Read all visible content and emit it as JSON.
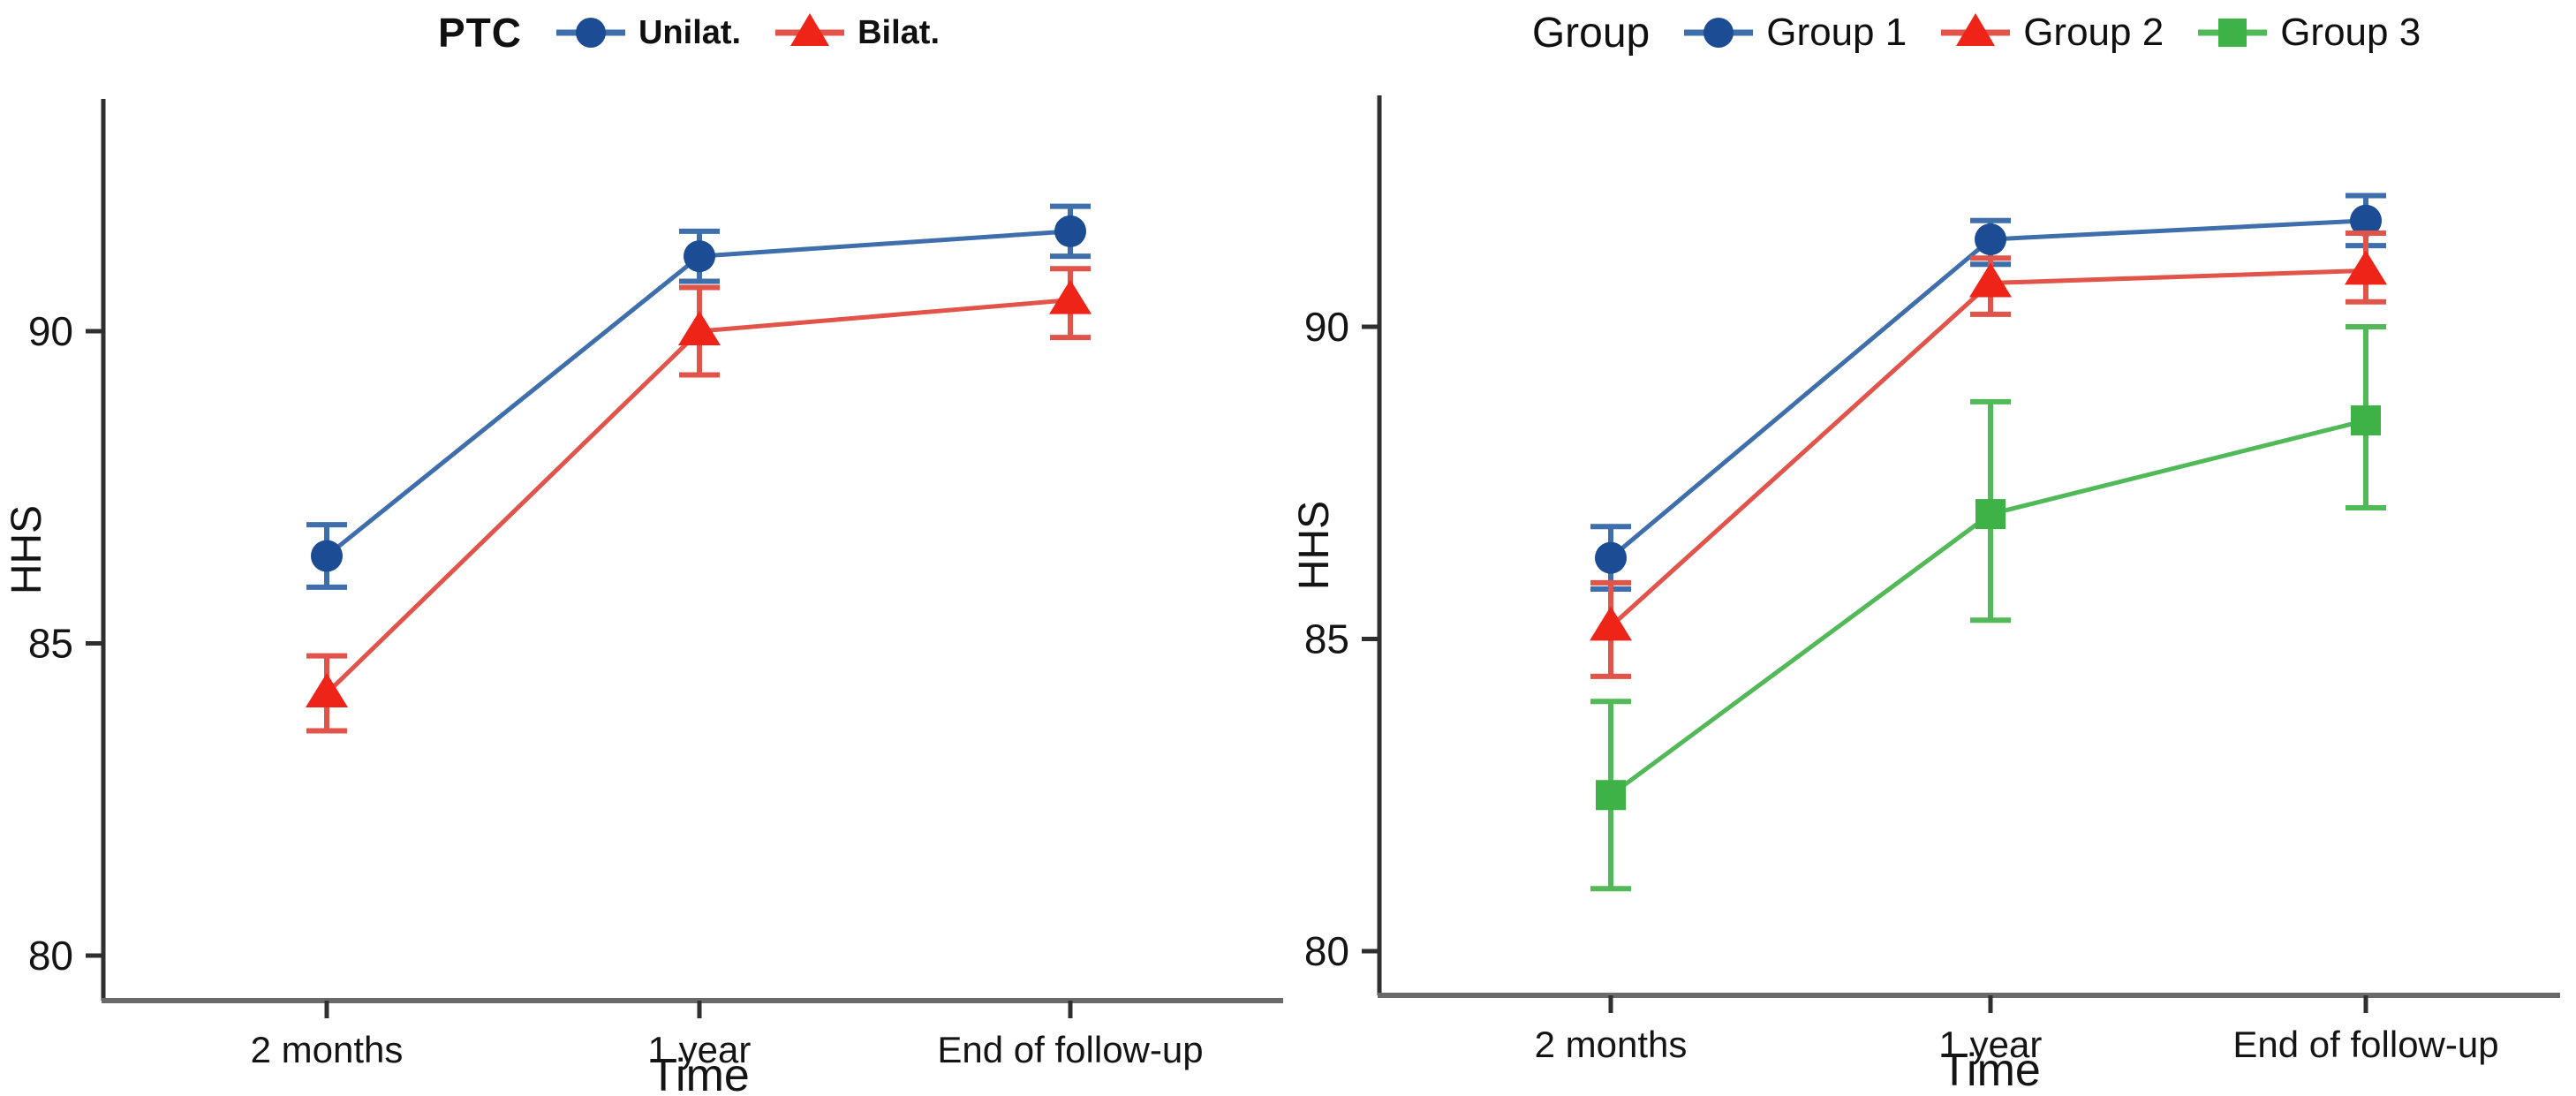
{
  "figure": {
    "background": "#ffffff",
    "text_color": "#141414",
    "y_axis_color": "#2f2f2f",
    "x_axis_color": "#6a6a6a"
  },
  "chart_data": [
    {
      "type": "line",
      "title": "",
      "legend_title": "PTC",
      "legend_position": "top",
      "xlabel": "Time",
      "ylabel": "HHS",
      "categories": [
        "2 months",
        "1 year",
        "End of follow-up"
      ],
      "yticks": [
        80,
        85,
        90
      ],
      "ylim": [
        79,
        93.5
      ],
      "grid": false,
      "error_bars": true,
      "series": [
        {
          "name": "Unilat.",
          "marker": "circle",
          "color": "#1b4c94",
          "line_color": "#3e6fac",
          "values": [
            86.4,
            91.2,
            91.6
          ],
          "ci_low": [
            85.9,
            90.8,
            91.2
          ],
          "ci_high": [
            86.9,
            91.6,
            92.0
          ]
        },
        {
          "name": "Bilat.",
          "marker": "triangle",
          "color": "#ee2418",
          "line_color": "#e2534a",
          "values": [
            84.2,
            90.0,
            90.5
          ],
          "ci_low": [
            83.6,
            89.3,
            89.9
          ],
          "ci_high": [
            84.8,
            90.7,
            91.0
          ]
        }
      ]
    },
    {
      "type": "line",
      "title": "",
      "legend_title": "Group",
      "legend_position": "top",
      "xlabel": "Time",
      "ylabel": "HHS",
      "categories": [
        "2 months",
        "1 year",
        "End of follow-up"
      ],
      "yticks": [
        80,
        85,
        90
      ],
      "ylim": [
        79,
        93.5
      ],
      "grid": false,
      "error_bars": true,
      "series": [
        {
          "name": "Group 1",
          "marker": "circle",
          "color": "#1b4c94",
          "line_color": "#3e6fac",
          "values": [
            86.3,
            91.4,
            91.7
          ],
          "ci_low": [
            85.8,
            91.0,
            91.3
          ],
          "ci_high": [
            86.8,
            91.7,
            92.1
          ]
        },
        {
          "name": "Group 2",
          "marker": "triangle",
          "color": "#ee2418",
          "line_color": "#e2534a",
          "values": [
            85.2,
            90.7,
            90.9
          ],
          "ci_low": [
            84.4,
            90.2,
            90.4
          ],
          "ci_high": [
            85.9,
            91.1,
            91.5
          ]
        },
        {
          "name": "Group 3",
          "marker": "square",
          "color": "#3db247",
          "line_color": "#51b957",
          "values": [
            82.5,
            87.0,
            88.5
          ],
          "ci_low": [
            81.0,
            85.3,
            87.1
          ],
          "ci_high": [
            84.0,
            88.8,
            90.0
          ]
        }
      ]
    }
  ]
}
